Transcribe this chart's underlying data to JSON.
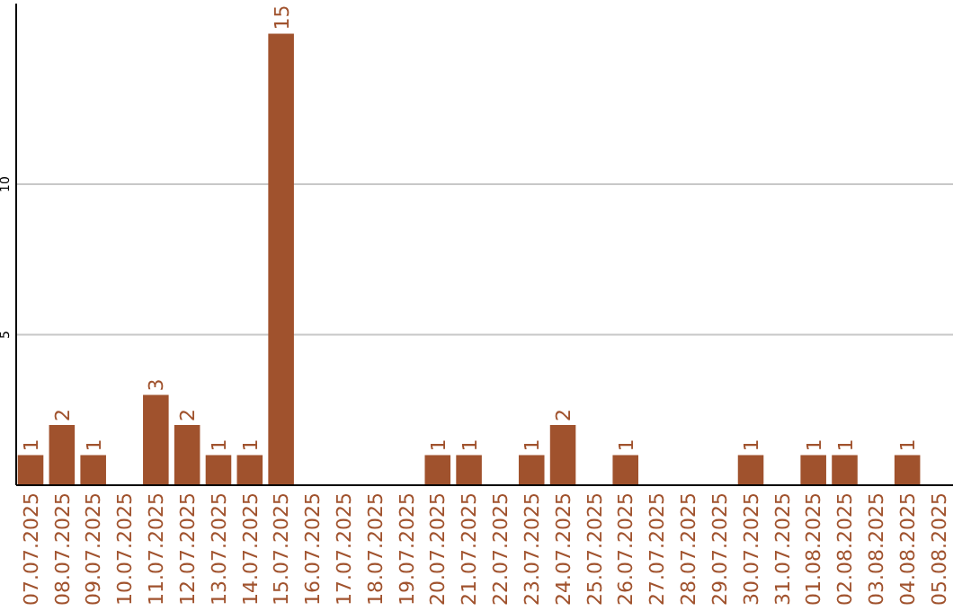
{
  "chart_data": {
    "type": "bar",
    "categories": [
      "07.07.2025",
      "08.07.2025",
      "09.07.2025",
      "10.07.2025",
      "11.07.2025",
      "12.07.2025",
      "13.07.2025",
      "14.07.2025",
      "15.07.2025",
      "16.07.2025",
      "17.07.2025",
      "18.07.2025",
      "19.07.2025",
      "20.07.2025",
      "21.07.2025",
      "22.07.2025",
      "23.07.2025",
      "24.07.2025",
      "25.07.2025",
      "26.07.2025",
      "27.07.2025",
      "28.07.2025",
      "29.07.2025",
      "30.07.2025",
      "31.07.2025",
      "01.08.2025",
      "02.08.2025",
      "03.08.2025",
      "04.08.2025",
      "05.08.2025"
    ],
    "values": [
      1,
      2,
      1,
      0,
      3,
      2,
      1,
      1,
      15,
      0,
      0,
      0,
      0,
      1,
      1,
      0,
      1,
      2,
      0,
      1,
      0,
      0,
      0,
      1,
      0,
      1,
      1,
      0,
      1,
      0
    ],
    "value_labels": [
      "1",
      "2",
      "1",
      null,
      "3",
      "2",
      "1",
      "1",
      "15",
      null,
      null,
      null,
      null,
      "1",
      "1",
      null,
      "1",
      "2",
      null,
      "1",
      null,
      null,
      null,
      "1",
      null,
      "1",
      "1",
      null,
      "1",
      null
    ],
    "color": "#a0522d",
    "ylim": [
      0,
      16
    ],
    "yticks": [
      5,
      10
    ],
    "grid": "y"
  }
}
